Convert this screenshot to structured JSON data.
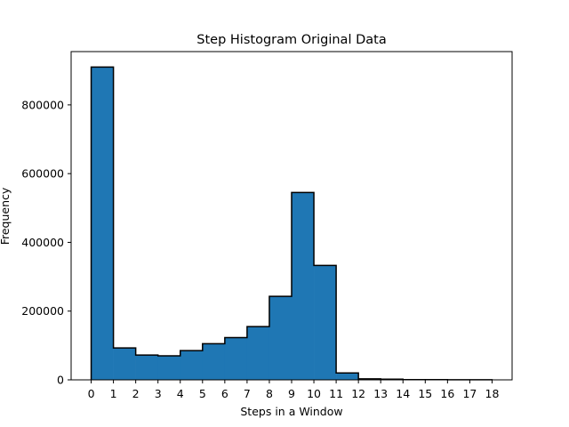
{
  "chart_data": {
    "type": "histogram",
    "title": "Step Histogram Original Data",
    "xlabel": "Steps in a Window",
    "ylabel": "Frequency",
    "bin_edges": [
      0,
      1,
      2,
      3,
      4,
      5,
      6,
      7,
      8,
      9,
      10,
      11,
      12,
      13,
      14,
      15,
      16,
      17,
      18
    ],
    "values": [
      910000,
      93000,
      72000,
      70000,
      85000,
      105000,
      123000,
      155000,
      243000,
      545000,
      333000,
      20000,
      3000,
      2000,
      800,
      500,
      300,
      200
    ],
    "xlim": [
      -0.9,
      18.9
    ],
    "ylim": [
      0,
      955000
    ],
    "xticks": [
      0,
      1,
      2,
      3,
      4,
      5,
      6,
      7,
      8,
      9,
      10,
      11,
      12,
      13,
      14,
      15,
      16,
      17,
      18
    ],
    "yticks": [
      0,
      200000,
      400000,
      600000,
      800000
    ],
    "bar_color": "#1f77b4",
    "edge_color": "#000000",
    "grid": false,
    "histtype": "step-filled"
  }
}
